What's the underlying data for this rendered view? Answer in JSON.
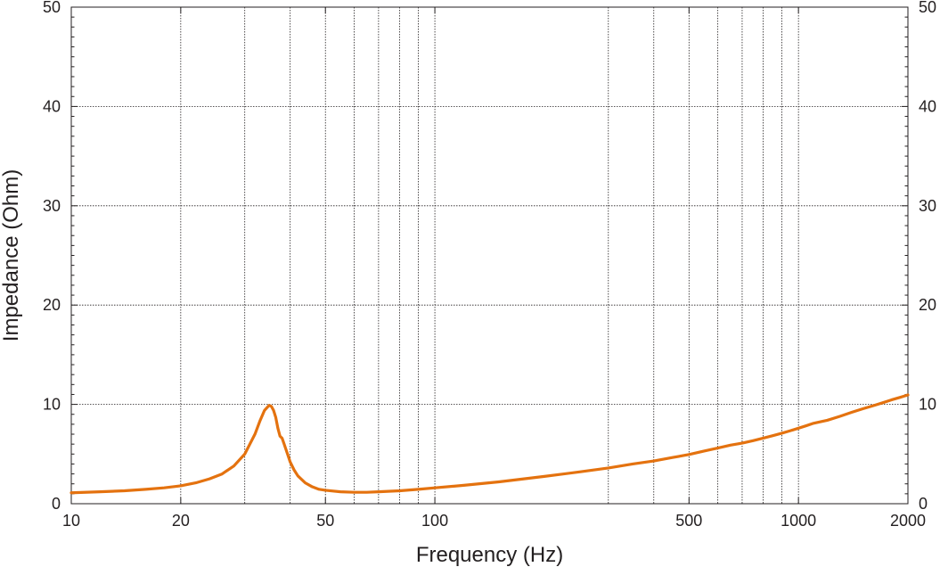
{
  "chart_data": {
    "type": "line",
    "title": "",
    "xlabel": "Frequency (Hz)",
    "ylabel": "Impedance (Ohm)",
    "x_scale": "log",
    "xlim": [
      10,
      2000
    ],
    "ylim": [
      0,
      50
    ],
    "grid": true,
    "legend": "none",
    "x_ticks": [
      10,
      20,
      50,
      100,
      500,
      1000,
      2000
    ],
    "x_tick_labels": [
      "10",
      "20",
      "50",
      "100",
      "500",
      "1000",
      "2000"
    ],
    "x_minor_grid": [
      30,
      40,
      60,
      70,
      80,
      90,
      300,
      400,
      600,
      700,
      800,
      900
    ],
    "y_ticks": [
      0,
      10,
      20,
      30,
      40,
      50
    ],
    "y_tick_labels": [
      "0",
      "10",
      "20",
      "30",
      "40",
      "50"
    ],
    "line_color": "#e4720f",
    "series": [
      {
        "x": [
          10,
          12,
          14,
          16,
          18,
          20,
          22,
          24,
          26,
          28,
          30,
          32,
          33,
          34,
          35,
          35.5,
          36,
          36.5,
          37,
          37.5,
          38,
          38.5,
          39,
          39.5,
          40,
          41,
          42,
          44,
          46,
          48,
          50,
          55,
          60,
          65,
          70,
          80,
          90,
          100,
          120,
          150,
          200,
          250,
          300,
          350,
          400,
          450,
          500,
          550,
          600,
          650,
          700,
          750,
          800,
          850,
          900,
          950,
          1000,
          1050,
          1100,
          1150,
          1200,
          1300,
          1400,
          1500,
          1600,
          1700,
          1800,
          1900,
          2000
        ],
        "y": [
          1.1,
          1.2,
          1.3,
          1.45,
          1.6,
          1.8,
          2.1,
          2.5,
          3.0,
          3.8,
          5.0,
          7.0,
          8.3,
          9.4,
          9.9,
          9.8,
          9.4,
          8.7,
          7.6,
          6.8,
          6.6,
          6.0,
          5.4,
          4.8,
          4.2,
          3.4,
          2.8,
          2.1,
          1.7,
          1.45,
          1.35,
          1.2,
          1.15,
          1.15,
          1.2,
          1.3,
          1.45,
          1.6,
          1.85,
          2.2,
          2.75,
          3.2,
          3.6,
          4.0,
          4.3,
          4.65,
          4.95,
          5.3,
          5.6,
          5.9,
          6.1,
          6.35,
          6.6,
          6.85,
          7.1,
          7.35,
          7.6,
          7.85,
          8.1,
          8.25,
          8.4,
          8.8,
          9.2,
          9.55,
          9.85,
          10.15,
          10.45,
          10.7,
          10.95
        ]
      }
    ]
  }
}
